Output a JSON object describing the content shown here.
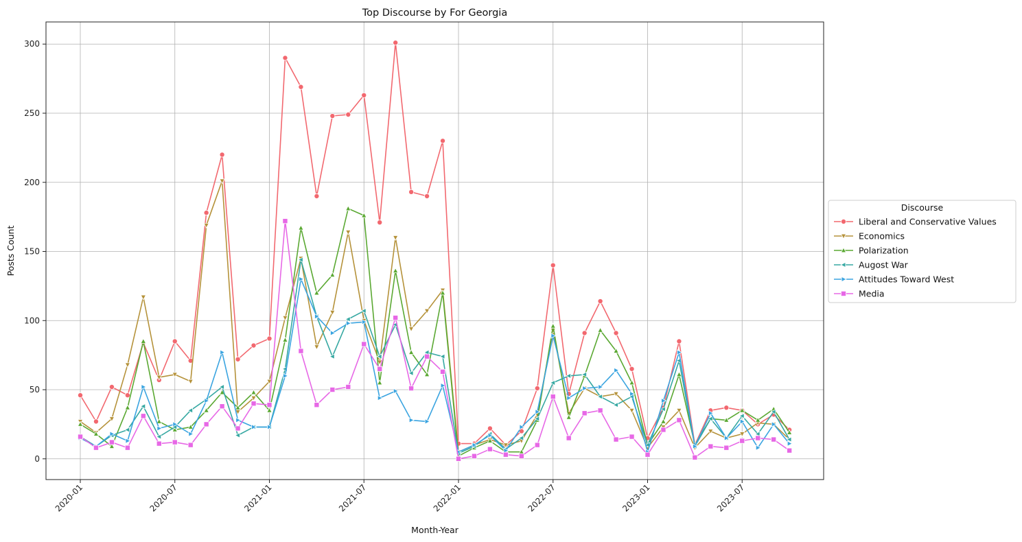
{
  "chart_data": {
    "type": "line",
    "title": "Top Discourse by For Georgia",
    "xlabel": "Month-Year",
    "ylabel": "Posts Count",
    "x_start": "2020-01",
    "x": [
      "2020-01",
      "2020-02",
      "2020-03",
      "2020-04",
      "2020-05",
      "2020-06",
      "2020-07",
      "2020-08",
      "2020-09",
      "2020-10",
      "2020-11",
      "2020-12",
      "2021-01",
      "2021-02",
      "2021-03",
      "2021-04",
      "2021-05",
      "2021-06",
      "2021-07",
      "2021-08",
      "2021-09",
      "2021-10",
      "2021-11",
      "2021-12",
      "2022-01",
      "2022-02",
      "2022-03",
      "2022-04",
      "2022-05",
      "2022-06",
      "2022-07",
      "2022-08",
      "2022-09",
      "2022-10",
      "2022-11",
      "2022-12",
      "2023-01",
      "2023-02",
      "2023-03",
      "2023-04",
      "2023-05",
      "2023-06",
      "2023-07",
      "2023-08",
      "2023-09",
      "2023-10"
    ],
    "x_ticks": [
      "2020-01",
      "2020-07",
      "2021-01",
      "2021-07",
      "2022-01",
      "2022-07",
      "2023-01",
      "2023-07"
    ],
    "x_tick_rotation": 45,
    "y_ticks": [
      0,
      50,
      100,
      150,
      200,
      250,
      300
    ],
    "ylim": [
      -15,
      316
    ],
    "xlim": [
      "2019-11",
      "2023-12"
    ],
    "grid": true,
    "legend_title": "Discourse",
    "legend_position": "outside-right",
    "series": [
      {
        "name": "Liberal and Conservative Values",
        "color": "#f2686f",
        "marker": "circle",
        "values": [
          46,
          27,
          52,
          46,
          84,
          57,
          85,
          71,
          178,
          220,
          72,
          82,
          87,
          290,
          269,
          190,
          248,
          249,
          263,
          171,
          301,
          193,
          190,
          230,
          11,
          11,
          22,
          10,
          20,
          51,
          140,
          47,
          91,
          114,
          91,
          65,
          15,
          37,
          85,
          10,
          35,
          37,
          35,
          25,
          32,
          21
        ]
      },
      {
        "name": "Economics",
        "color": "#b5923a",
        "marker": "triangle-down",
        "values": [
          27,
          19,
          29,
          68,
          117,
          59,
          61,
          56,
          169,
          201,
          34,
          44,
          56,
          102,
          145,
          81,
          106,
          164,
          100,
          70,
          160,
          94,
          107,
          122,
          5,
          10,
          14,
          10,
          13,
          32,
          93,
          33,
          51,
          45,
          47,
          35,
          8,
          23,
          35,
          8,
          20,
          15,
          18,
          26,
          25,
          14
        ]
      },
      {
        "name": "Polarization",
        "color": "#5aa832",
        "marker": "triangle-up",
        "values": [
          25,
          18,
          9,
          37,
          85,
          27,
          21,
          23,
          35,
          48,
          37,
          48,
          35,
          86,
          167,
          120,
          133,
          181,
          176,
          55,
          136,
          77,
          61,
          120,
          2,
          8,
          13,
          5,
          5,
          28,
          96,
          30,
          60,
          93,
          78,
          55,
          10,
          27,
          61,
          10,
          29,
          28,
          35,
          28,
          36,
          19
        ]
      },
      {
        "name": "Augost War",
        "color": "#36a8a2",
        "marker": "triangle-left",
        "values": [
          16,
          9,
          17,
          21,
          38,
          16,
          23,
          35,
          43,
          52,
          17,
          23,
          23,
          65,
          144,
          103,
          74,
          101,
          107,
          74,
          97,
          62,
          77,
          74,
          4,
          9,
          18,
          7,
          15,
          29,
          55,
          60,
          61,
          45,
          39,
          45,
          10,
          36,
          71,
          9,
          29,
          15,
          31,
          18,
          34,
          14
        ]
      },
      {
        "name": "Attitudes Toward West",
        "color": "#3aa4e0",
        "marker": "triangle-right",
        "values": [
          15,
          9,
          18,
          13,
          52,
          22,
          25,
          18,
          42,
          77,
          28,
          23,
          23,
          60,
          130,
          103,
          91,
          98,
          99,
          44,
          49,
          28,
          27,
          53,
          5,
          10,
          17,
          6,
          23,
          34,
          89,
          44,
          51,
          52,
          64,
          47,
          5,
          42,
          77,
          9,
          33,
          15,
          27,
          8,
          25,
          11
        ]
      },
      {
        "name": "Media",
        "color": "#e768e6",
        "marker": "square",
        "values": [
          16,
          8,
          12,
          8,
          31,
          11,
          12,
          10,
          25,
          38,
          22,
          40,
          39,
          172,
          78,
          39,
          50,
          52,
          83,
          65,
          102,
          51,
          74,
          63,
          0,
          2,
          7,
          3,
          2,
          10,
          45,
          15,
          33,
          35,
          14,
          16,
          3,
          21,
          28,
          1,
          9,
          8,
          13,
          15,
          14,
          6
        ]
      }
    ]
  }
}
